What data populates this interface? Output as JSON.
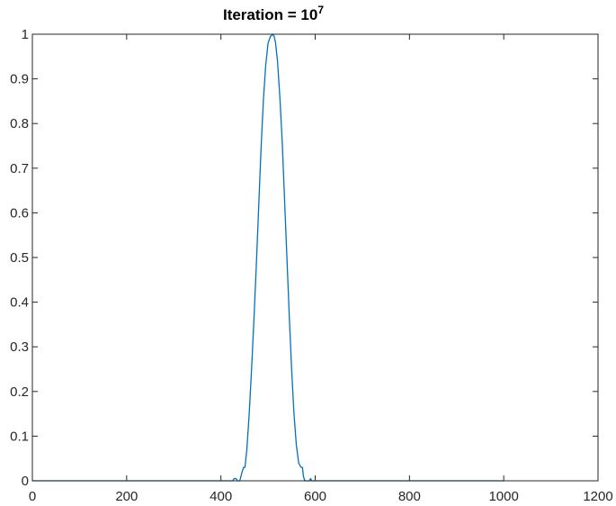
{
  "chart_data": {
    "type": "line",
    "title": "Iteration = 10",
    "title_exponent": "7",
    "xlabel": "",
    "ylabel": "",
    "xlim": [
      0,
      1200
    ],
    "ylim": [
      0,
      1
    ],
    "grid": false,
    "colors": {
      "line": "#0072BD",
      "axes": "#262626",
      "background": "#ffffff"
    },
    "xticks": [
      {
        "value": 0,
        "label": "0"
      },
      {
        "value": 200,
        "label": "200"
      },
      {
        "value": 400,
        "label": "400"
      },
      {
        "value": 600,
        "label": "600"
      },
      {
        "value": 800,
        "label": "800"
      },
      {
        "value": 1000,
        "label": "1000"
      },
      {
        "value": 1200,
        "label": "1200"
      }
    ],
    "yticks": [
      {
        "value": 0,
        "label": "0"
      },
      {
        "value": 0.1,
        "label": "0.1"
      },
      {
        "value": 0.2,
        "label": "0.2"
      },
      {
        "value": 0.3,
        "label": "0.3"
      },
      {
        "value": 0.4,
        "label": "0.4"
      },
      {
        "value": 0.5,
        "label": "0.5"
      },
      {
        "value": 0.6,
        "label": "0.6"
      },
      {
        "value": 0.7,
        "label": "0.7"
      },
      {
        "value": 0.8,
        "label": "0.8"
      },
      {
        "value": 0.9,
        "label": "0.9"
      },
      {
        "value": 1,
        "label": "1"
      }
    ],
    "series": [
      {
        "x": [
          0,
          420,
          425,
          428,
          432,
          435,
          438,
          440,
          445,
          448,
          451,
          455,
          460,
          465,
          470,
          475,
          480,
          485,
          490,
          495,
          500,
          505,
          510,
          513,
          516,
          520,
          525,
          530,
          535,
          540,
          545,
          550,
          555,
          560,
          565,
          570,
          573,
          575,
          578,
          582,
          585,
          588,
          590,
          593,
          596,
          600,
          1000
        ],
        "y": [
          0,
          0,
          0,
          0.005,
          0.005,
          0,
          0,
          0,
          0.02,
          0.03,
          0.03,
          0.07,
          0.15,
          0.25,
          0.36,
          0.48,
          0.61,
          0.74,
          0.85,
          0.93,
          0.98,
          0.995,
          1.0,
          0.995,
          0.98,
          0.94,
          0.86,
          0.76,
          0.63,
          0.5,
          0.37,
          0.25,
          0.15,
          0.08,
          0.04,
          0.03,
          0.03,
          0.01,
          0,
          0,
          0,
          0,
          0.005,
          0,
          0,
          0,
          0
        ]
      }
    ]
  }
}
